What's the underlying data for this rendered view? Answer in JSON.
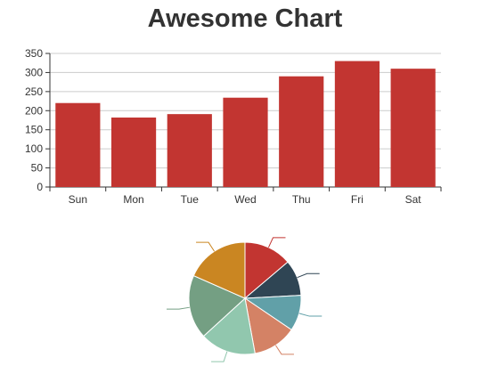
{
  "chart_data": [
    {
      "type": "bar",
      "title": "Awesome Chart",
      "categories": [
        "Sun",
        "Mon",
        "Tue",
        "Wed",
        "Thu",
        "Fri",
        "Sat"
      ],
      "values": [
        220,
        182,
        191,
        234,
        290,
        330,
        310
      ],
      "ylim": [
        0,
        350
      ],
      "yticks": [
        0,
        50,
        100,
        150,
        200,
        250,
        300,
        350
      ],
      "grid": true,
      "colors": {
        "bar": "#c23531"
      }
    },
    {
      "type": "pie",
      "values": [
        12,
        9,
        9,
        11,
        14,
        16,
        16
      ],
      "colors": [
        "#c23531",
        "#2f4554",
        "#61a0a8",
        "#d48265",
        "#91c7ae",
        "#749f83",
        "#ca8622"
      ]
    }
  ]
}
